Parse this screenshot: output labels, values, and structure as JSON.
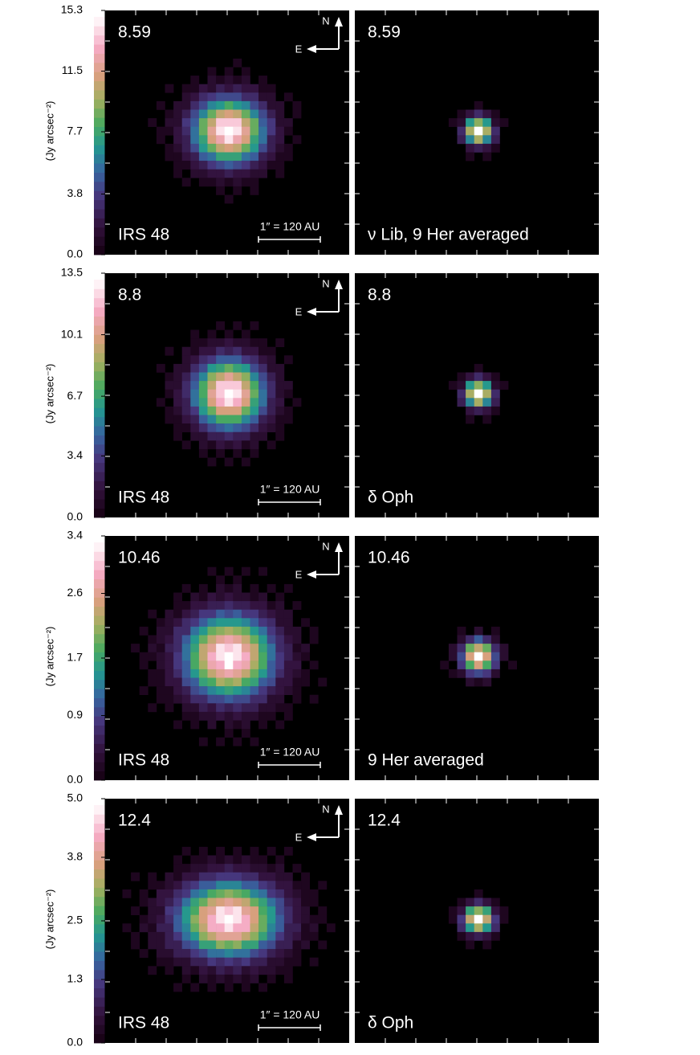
{
  "chart_data": [
    {
      "type": "image",
      "colorbar_label": "(Jy arcsec⁻²)",
      "ylim": [
        0,
        15.3
      ],
      "yticks": [
        {
          "value": 0,
          "label": "0.0"
        },
        3.8,
        7.7,
        11.5,
        15.3
      ],
      "panels": [
        {
          "wavelength": "8.59",
          "target": "IRS 48",
          "scale_bar": "1″ = 120 AU",
          "compass": [
            "N",
            "E"
          ]
        },
        {
          "wavelength": "8.59",
          "target": "ν  Lib, 9 Her averaged"
        }
      ]
    },
    {
      "type": "image",
      "colorbar_label": "(Jy arcsec⁻²)",
      "ylim": [
        0,
        13.5
      ],
      "yticks": [
        {
          "value": 0,
          "label": "0.0"
        },
        3.4,
        6.7,
        10.1,
        13.5
      ],
      "panels": [
        {
          "wavelength": "8.8",
          "target": "IRS 48",
          "scale_bar": "1″ = 120 AU",
          "compass": [
            "N",
            "E"
          ]
        },
        {
          "wavelength": "8.8",
          "target": "δ  Oph"
        }
      ]
    },
    {
      "type": "image",
      "colorbar_label": "(Jy arcsec⁻²)",
      "ylim": [
        0,
        3.4
      ],
      "yticks": [
        {
          "value": 0,
          "label": "0.0"
        },
        0.9,
        1.7,
        2.6,
        3.4
      ],
      "panels": [
        {
          "wavelength": "10.46",
          "target": "IRS 48",
          "scale_bar": "1″ = 120 AU",
          "compass": [
            "N",
            "E"
          ]
        },
        {
          "wavelength": "10.46",
          "target": "9 Her averaged"
        }
      ]
    },
    {
      "type": "image",
      "colorbar_label": "(Jy arcsec⁻²)",
      "ylim": [
        0,
        5.0
      ],
      "yticks": [
        {
          "value": 0,
          "label": "0.0"
        },
        1.3,
        2.5,
        3.8,
        {
          "value": 5.0,
          "label": "5.0"
        }
      ],
      "panels": [
        {
          "wavelength": "12.4",
          "target": "IRS 48",
          "scale_bar": "1″ = 120 AU",
          "compass": [
            "N",
            "E"
          ]
        },
        {
          "wavelength": "12.4",
          "target": "δ  Oph"
        }
      ]
    }
  ]
}
